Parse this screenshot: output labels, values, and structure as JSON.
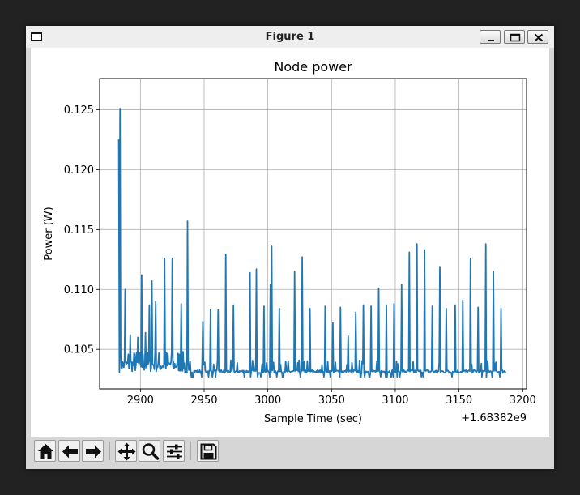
{
  "window": {
    "title": "Figure 1"
  },
  "toolbar": {
    "buttons": [
      "home-icon",
      "back-arrow-icon",
      "forward-arrow-icon",
      "pan-icon",
      "zoom-icon",
      "configure-subplots-icon",
      "save-icon"
    ]
  },
  "chart_data": {
    "type": "line",
    "title": "Node power",
    "xlabel": "Sample Time (sec)",
    "ylabel": "Power (W)",
    "x_offset_label": "+1.68382e9",
    "x_tick_labels": [
      "2900",
      "2950",
      "3000",
      "3050",
      "3100",
      "3150",
      "3200"
    ],
    "y_tick_labels": [
      "0.105",
      "0.110",
      "0.115",
      "0.120",
      "0.125"
    ],
    "xlim": [
      2868,
      3203
    ],
    "ylim": [
      0.1017,
      0.1276
    ],
    "grid": true,
    "line_color": "#1f77b4",
    "baseline": 0.1031,
    "peaks": [
      {
        "x": 2883,
        "y": 0.1225
      },
      {
        "x": 2884,
        "y": 0.1251
      },
      {
        "x": 2888,
        "y": 0.11
      },
      {
        "x": 2892,
        "y": 0.1062
      },
      {
        "x": 2898,
        "y": 0.106
      },
      {
        "x": 2901,
        "y": 0.1112
      },
      {
        "x": 2904,
        "y": 0.1064
      },
      {
        "x": 2907,
        "y": 0.1087
      },
      {
        "x": 2909,
        "y": 0.1107
      },
      {
        "x": 2912,
        "y": 0.109
      },
      {
        "x": 2919,
        "y": 0.1126
      },
      {
        "x": 2925,
        "y": 0.1126
      },
      {
        "x": 2932,
        "y": 0.1088
      },
      {
        "x": 2937,
        "y": 0.1157
      },
      {
        "x": 2949,
        "y": 0.1073
      },
      {
        "x": 2955,
        "y": 0.1083
      },
      {
        "x": 2961,
        "y": 0.1083
      },
      {
        "x": 2967,
        "y": 0.1129
      },
      {
        "x": 2973,
        "y": 0.1087
      },
      {
        "x": 2986,
        "y": 0.1114
      },
      {
        "x": 2991,
        "y": 0.1117
      },
      {
        "x": 2997,
        "y": 0.1086
      },
      {
        "x": 3002,
        "y": 0.1104
      },
      {
        "x": 3003,
        "y": 0.1136
      },
      {
        "x": 3009,
        "y": 0.1084
      },
      {
        "x": 3021,
        "y": 0.1115
      },
      {
        "x": 3027,
        "y": 0.1127
      },
      {
        "x": 3033,
        "y": 0.1084
      },
      {
        "x": 3045,
        "y": 0.1086
      },
      {
        "x": 3051,
        "y": 0.1072
      },
      {
        "x": 3057,
        "y": 0.1085
      },
      {
        "x": 3063,
        "y": 0.1061
      },
      {
        "x": 3069,
        "y": 0.1081
      },
      {
        "x": 3075,
        "y": 0.1087
      },
      {
        "x": 3081,
        "y": 0.1086
      },
      {
        "x": 3087,
        "y": 0.1101
      },
      {
        "x": 3093,
        "y": 0.1087
      },
      {
        "x": 3099,
        "y": 0.1088
      },
      {
        "x": 3105,
        "y": 0.1104
      },
      {
        "x": 3111,
        "y": 0.1131
      },
      {
        "x": 3117,
        "y": 0.1138
      },
      {
        "x": 3123,
        "y": 0.1133
      },
      {
        "x": 3129,
        "y": 0.1086
      },
      {
        "x": 3135,
        "y": 0.1119
      },
      {
        "x": 3140,
        "y": 0.1084
      },
      {
        "x": 3147,
        "y": 0.1087
      },
      {
        "x": 3153,
        "y": 0.1091
      },
      {
        "x": 3159,
        "y": 0.1126
      },
      {
        "x": 3165,
        "y": 0.1085
      },
      {
        "x": 3171,
        "y": 0.1138
      },
      {
        "x": 3177,
        "y": 0.1115
      },
      {
        "x": 3183,
        "y": 0.1084
      }
    ]
  }
}
